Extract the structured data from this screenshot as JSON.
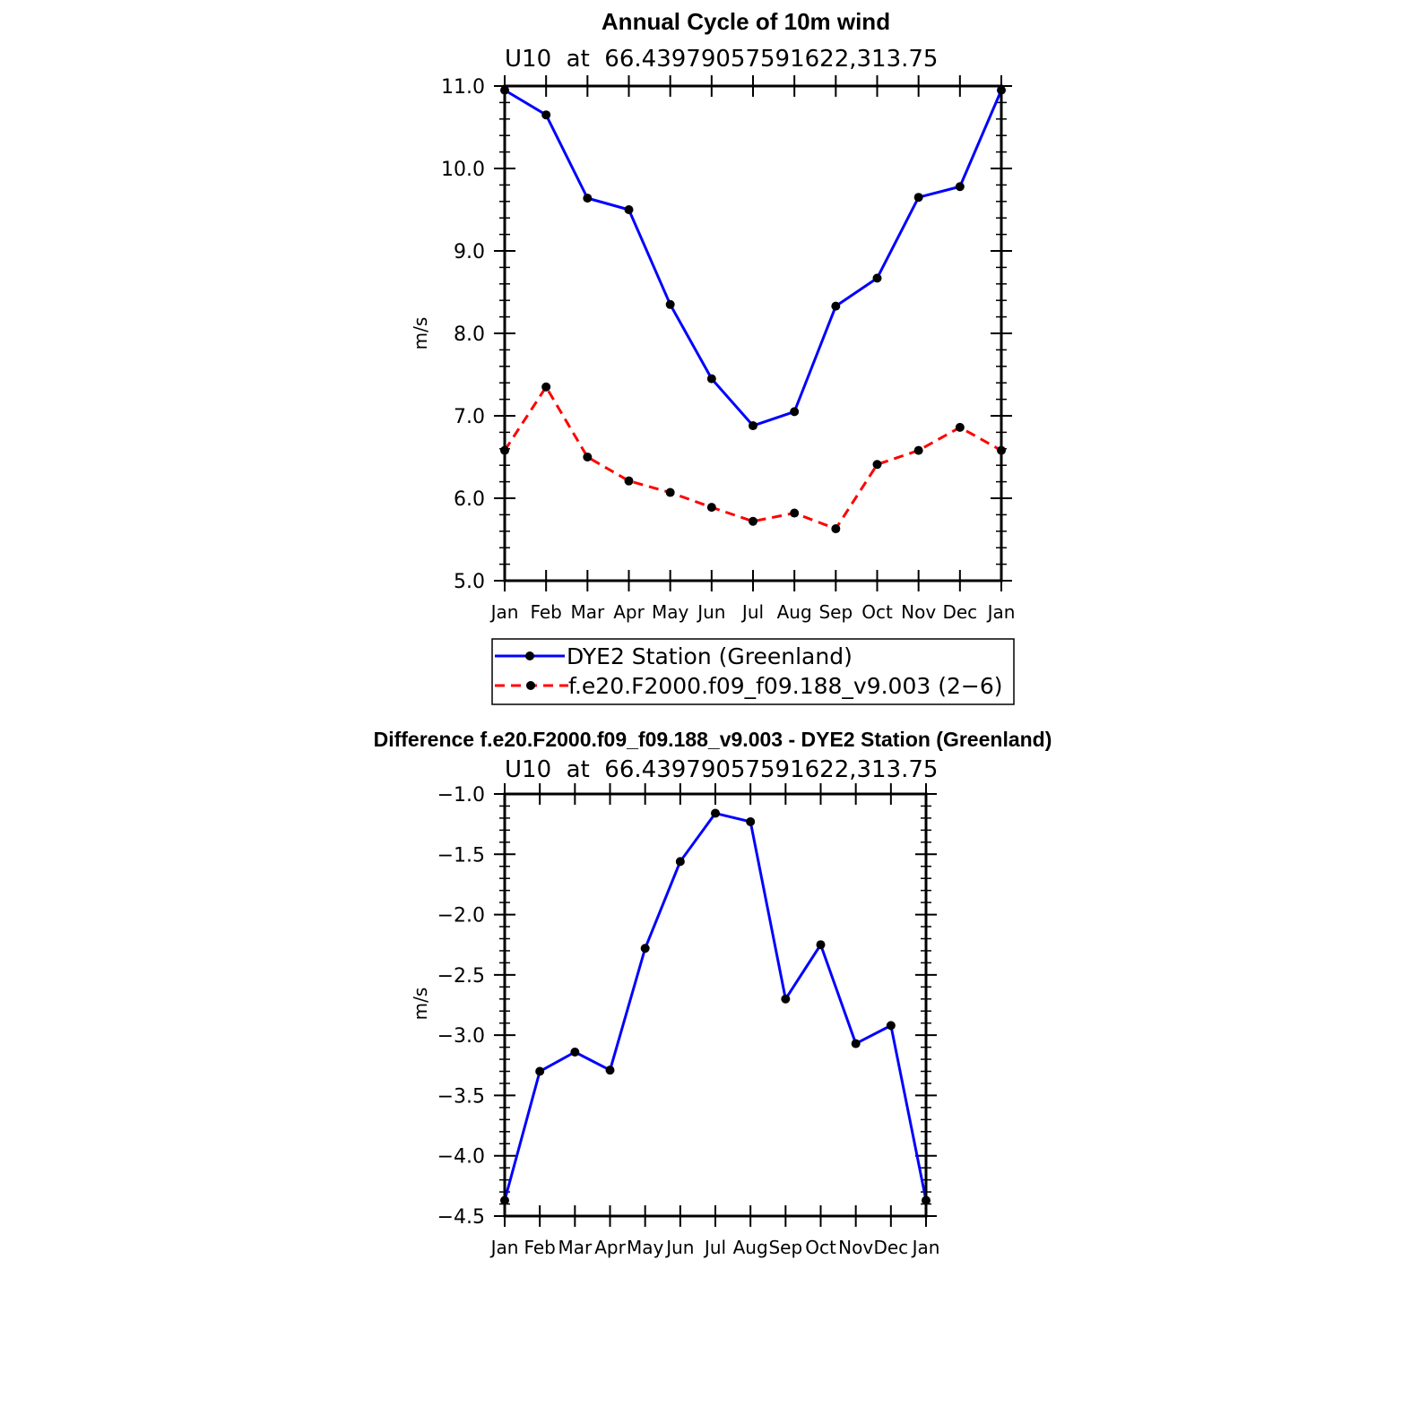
{
  "chart_data": [
    {
      "type": "line",
      "title": "Annual Cycle of 10m wind",
      "subtitle": "U10  at  66.43979057591622,313.75",
      "xlabel": "",
      "ylabel": "m/s",
      "ylim": [
        5.0,
        11.0
      ],
      "yticks": [
        "5.0",
        "6.0",
        "7.0",
        "8.0",
        "9.0",
        "10.0",
        "11.0"
      ],
      "categories": [
        "Jan",
        "Feb",
        "Mar",
        "Apr",
        "May",
        "Jun",
        "Jul",
        "Aug",
        "Sep",
        "Oct",
        "Nov",
        "Dec",
        "Jan"
      ],
      "series": [
        {
          "name": "DYE2 Station (Greenland)",
          "color": "#0000ff",
          "dash": "solid",
          "values": [
            10.95,
            10.65,
            9.64,
            9.5,
            8.35,
            7.45,
            6.88,
            7.05,
            8.33,
            8.67,
            9.65,
            9.78,
            10.95
          ]
        },
        {
          "name": "f.e20.F2000.f09_f09.188_v9.003 (2−6)",
          "color": "#ff0000",
          "dash": "dashed",
          "values": [
            6.58,
            7.35,
            6.5,
            6.21,
            6.07,
            5.89,
            5.72,
            5.82,
            5.63,
            6.41,
            6.58,
            6.86,
            6.58
          ]
        }
      ],
      "legend_position": "below"
    },
    {
      "type": "line",
      "title": "Difference f.e20.F2000.f09_f09.188_v9.003 - DYE2 Station (Greenland)",
      "subtitle": "U10  at  66.43979057591622,313.75",
      "xlabel": "",
      "ylabel": "m/s",
      "ylim": [
        -4.5,
        -1.0
      ],
      "yticks": [
        "−4.5",
        "−4.0",
        "−3.5",
        "−3.0",
        "−2.5",
        "−2.0",
        "−1.5",
        "−1.0"
      ],
      "categories": [
        "Jan",
        "Feb",
        "Mar",
        "Apr",
        "May",
        "Jun",
        "Jul",
        "Aug",
        "Sep",
        "Oct",
        "Nov",
        "Dec",
        "Jan"
      ],
      "series": [
        {
          "name": "Difference",
          "color": "#0000ff",
          "dash": "solid",
          "values": [
            -4.37,
            -3.3,
            -3.14,
            -3.29,
            -2.28,
            -1.56,
            -1.16,
            -1.23,
            -2.7,
            -2.25,
            -3.07,
            -2.92,
            -4.37
          ]
        }
      ]
    }
  ]
}
